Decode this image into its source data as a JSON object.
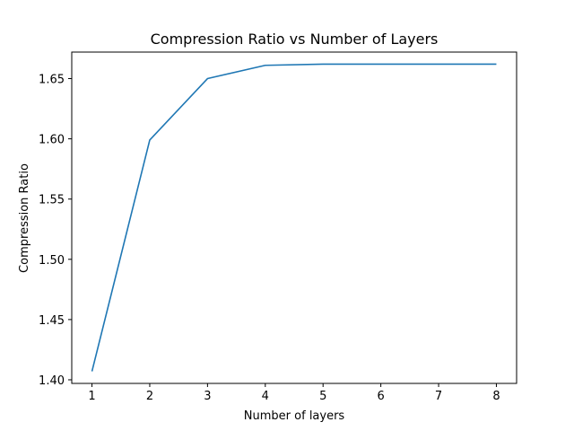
{
  "chart_data": {
    "type": "line",
    "title": "Compression Ratio vs Number of Layers",
    "xlabel": "Number of layers",
    "ylabel": "Compression Ratio",
    "x": [
      1,
      2,
      3,
      4,
      5,
      6,
      7,
      8
    ],
    "series": [
      {
        "values": [
          1.407,
          1.599,
          1.65,
          1.661,
          1.662,
          1.662,
          1.662,
          1.662
        ]
      }
    ],
    "xlim": [
      0.65,
      8.35
    ],
    "ylim": [
      1.397,
      1.672
    ],
    "xticks": [
      1,
      2,
      3,
      4,
      5,
      6,
      7,
      8
    ],
    "yticks": [
      1.4,
      1.45,
      1.5,
      1.55,
      1.6,
      1.65
    ],
    "ytick_labels": [
      "1.40",
      "1.45",
      "1.50",
      "1.55",
      "1.60",
      "1.65"
    ],
    "grid": false,
    "legend": "none",
    "colors": {
      "line": "#1f77b4",
      "axes": "#000000"
    }
  }
}
